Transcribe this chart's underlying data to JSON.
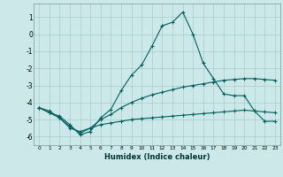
{
  "xlabel": "Humidex (Indice chaleur)",
  "background_color": "#cce8e8",
  "grid_color": "#a8cccc",
  "line_color": "#006060",
  "series1_x": [
    0,
    1,
    2,
    3,
    4,
    5,
    6,
    7,
    8,
    9,
    10,
    11,
    12,
    13,
    14,
    15,
    16,
    17,
    18,
    19,
    20,
    21,
    22,
    23
  ],
  "series1_y": [
    -4.3,
    -4.6,
    -4.8,
    -5.3,
    -5.9,
    -5.7,
    -4.9,
    -4.4,
    -3.3,
    -2.4,
    -1.8,
    -0.7,
    0.5,
    0.7,
    1.3,
    0.0,
    -1.7,
    -2.6,
    -3.5,
    -3.6,
    -3.6,
    -4.5,
    -5.1,
    -5.1
  ],
  "series2_x": [
    0,
    1,
    2,
    3,
    4,
    5,
    6,
    7,
    8,
    9,
    10,
    11,
    12,
    13,
    14,
    15,
    16,
    17,
    18,
    19,
    20,
    21,
    22,
    23
  ],
  "series2_y": [
    -4.3,
    -4.5,
    -4.9,
    -5.4,
    -5.8,
    -5.5,
    -5.0,
    -4.7,
    -4.3,
    -4.0,
    -3.75,
    -3.55,
    -3.4,
    -3.25,
    -3.1,
    -3.0,
    -2.9,
    -2.8,
    -2.7,
    -2.65,
    -2.6,
    -2.6,
    -2.65,
    -2.7
  ],
  "series3_x": [
    0,
    1,
    2,
    3,
    4,
    5,
    6,
    7,
    8,
    9,
    10,
    11,
    12,
    13,
    14,
    15,
    16,
    17,
    18,
    19,
    20,
    21,
    22,
    23
  ],
  "series3_y": [
    -4.3,
    -4.6,
    -4.9,
    -5.5,
    -5.7,
    -5.5,
    -5.3,
    -5.2,
    -5.1,
    -5.0,
    -4.95,
    -4.9,
    -4.85,
    -4.8,
    -4.75,
    -4.7,
    -4.65,
    -4.6,
    -4.55,
    -4.5,
    -4.45,
    -4.5,
    -4.55,
    -4.6
  ],
  "ylim": [
    -6.5,
    1.8
  ],
  "xlim": [
    -0.5,
    23.5
  ],
  "yticks": [
    1,
    0,
    -1,
    -2,
    -3,
    -4,
    -5,
    -6
  ],
  "xticks": [
    0,
    1,
    2,
    3,
    4,
    5,
    6,
    7,
    8,
    9,
    10,
    11,
    12,
    13,
    14,
    15,
    16,
    17,
    18,
    19,
    20,
    21,
    22,
    23
  ]
}
